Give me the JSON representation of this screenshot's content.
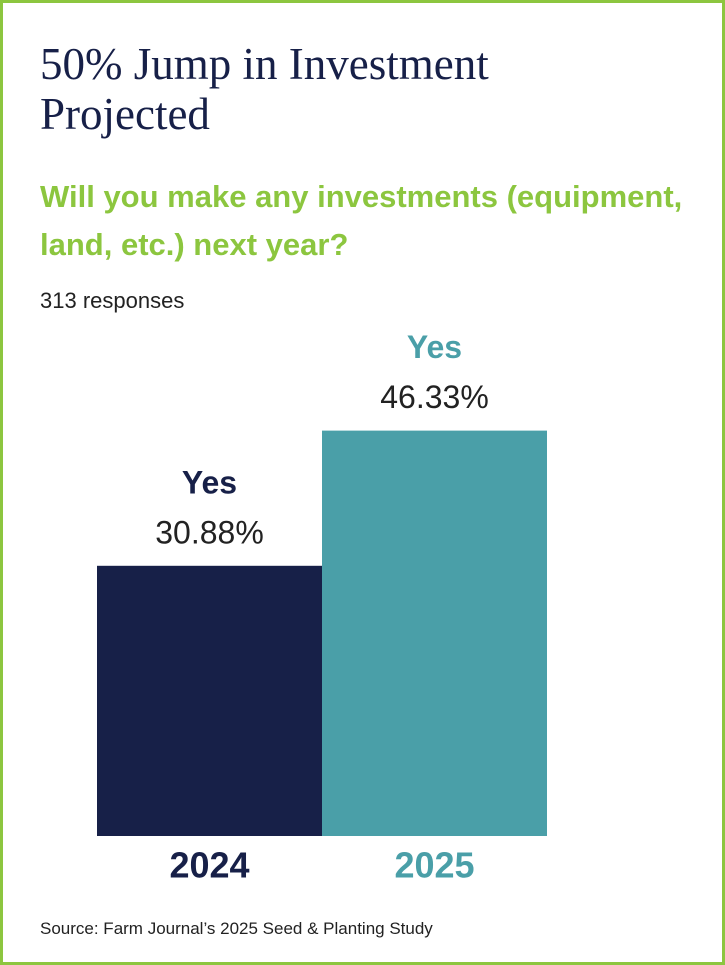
{
  "chart_data": {
    "type": "bar",
    "title": "50% Jump in Investment Projected",
    "subtitle": "Will you make any investments (equipment, land, etc.) next year?",
    "note": "313 responses",
    "source": "Source: Farm Journal’s 2025 Seed & Planting Study",
    "categories": [
      "2024",
      "2025"
    ],
    "bar_labels": [
      "Yes",
      "Yes"
    ],
    "values": [
      30.88,
      46.33
    ],
    "value_labels": [
      "30.88%",
      "46.33%"
    ],
    "colors": [
      "#172048",
      "#4a9fa8"
    ]
  }
}
